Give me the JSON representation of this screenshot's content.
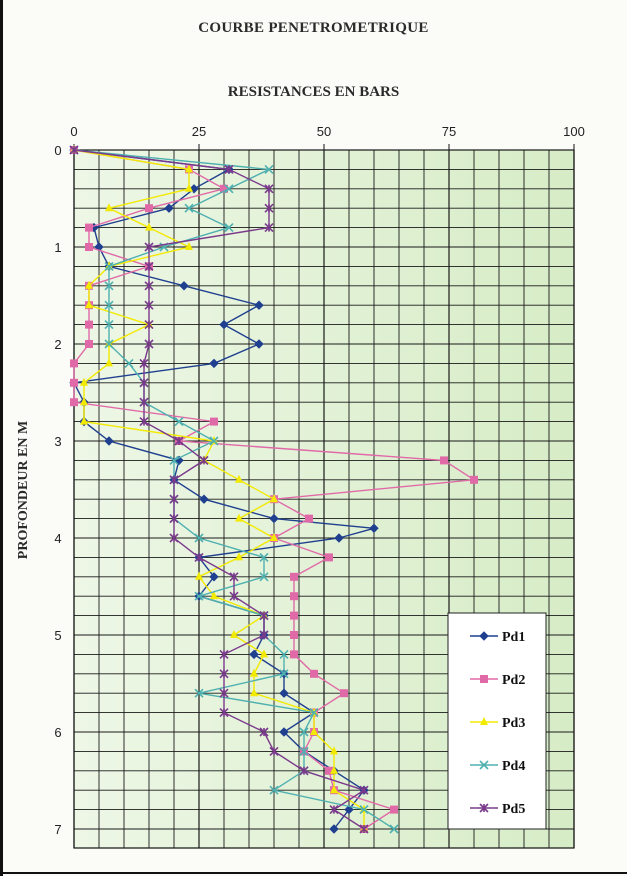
{
  "chart_data": {
    "type": "line",
    "title": "COURBE PENETROMETRIQUE",
    "xlabel": "RESISTANCES EN BARS",
    "ylabel": "PROFONDEUR EN M",
    "xlim": [
      0,
      100
    ],
    "ylim": [
      0,
      7.2
    ],
    "y_inverted": true,
    "x_axis_position": "top",
    "x_ticks": [
      0,
      25,
      50,
      75,
      100
    ],
    "y_ticks": [
      0,
      1,
      2,
      3,
      4,
      5,
      6,
      7
    ],
    "grid": true,
    "legend_position": "bottom-right",
    "series": [
      {
        "name": "Pd1",
        "color": "#1f3f8f",
        "marker": "diamond",
        "points": [
          [
            0,
            0
          ],
          [
            31,
            0.2
          ],
          [
            24,
            0.4
          ],
          [
            19,
            0.6
          ],
          [
            4,
            0.8
          ],
          [
            5,
            1.0
          ],
          [
            7,
            1.2
          ],
          [
            22,
            1.4
          ],
          [
            37,
            1.6
          ],
          [
            30,
            1.8
          ],
          [
            37,
            2.0
          ],
          [
            28,
            2.2
          ],
          [
            0,
            2.4
          ],
          [
            2,
            2.6
          ],
          [
            2,
            2.8
          ],
          [
            7,
            3.0
          ],
          [
            21,
            3.2
          ],
          [
            20,
            3.4
          ],
          [
            26,
            3.6
          ],
          [
            40,
            3.8
          ],
          [
            60,
            3.9
          ],
          [
            53,
            4.0
          ],
          [
            25,
            4.2
          ],
          [
            28,
            4.4
          ],
          [
            25,
            4.6
          ],
          [
            38,
            4.8
          ],
          [
            38,
            5.0
          ],
          [
            36,
            5.2
          ],
          [
            42,
            5.4
          ],
          [
            42,
            5.6
          ],
          [
            48,
            5.8
          ],
          [
            42,
            6.0
          ],
          [
            46,
            6.2
          ],
          [
            52,
            6.4
          ],
          [
            58,
            6.6
          ],
          [
            55,
            6.8
          ],
          [
            52,
            7.0
          ]
        ]
      },
      {
        "name": "Pd2",
        "color": "#e06aa8",
        "marker": "square",
        "points": [
          [
            0,
            0
          ],
          [
            23,
            0.2
          ],
          [
            30,
            0.4
          ],
          [
            15,
            0.6
          ],
          [
            3,
            0.8
          ],
          [
            3,
            1.0
          ],
          [
            15,
            1.2
          ],
          [
            3,
            1.4
          ],
          [
            3,
            1.6
          ],
          [
            3,
            1.8
          ],
          [
            3,
            2.0
          ],
          [
            0,
            2.2
          ],
          [
            0,
            2.4
          ],
          [
            0,
            2.6
          ],
          [
            28,
            2.8
          ],
          [
            21,
            3.0
          ],
          [
            74,
            3.2
          ],
          [
            80,
            3.4
          ],
          [
            40,
            3.6
          ],
          [
            47,
            3.8
          ],
          [
            40,
            4.0
          ],
          [
            51,
            4.2
          ],
          [
            44,
            4.4
          ],
          [
            44,
            4.6
          ],
          [
            44,
            4.8
          ],
          [
            44,
            5.0
          ],
          [
            44,
            5.2
          ],
          [
            48,
            5.4
          ],
          [
            54,
            5.6
          ],
          [
            48,
            5.8
          ],
          [
            48,
            6.0
          ],
          [
            46,
            6.2
          ],
          [
            51,
            6.4
          ],
          [
            52,
            6.6
          ],
          [
            64,
            6.8
          ],
          [
            58,
            7.0
          ]
        ]
      },
      {
        "name": "Pd3",
        "color": "#f2ea00",
        "marker": "triangle",
        "points": [
          [
            0,
            0
          ],
          [
            23,
            0.2
          ],
          [
            23,
            0.4
          ],
          [
            7,
            0.6
          ],
          [
            15,
            0.8
          ],
          [
            23,
            1.0
          ],
          [
            7,
            1.2
          ],
          [
            3,
            1.4
          ],
          [
            3,
            1.6
          ],
          [
            15,
            1.8
          ],
          [
            7,
            2.0
          ],
          [
            7,
            2.2
          ],
          [
            2,
            2.4
          ],
          [
            2,
            2.6
          ],
          [
            2,
            2.8
          ],
          [
            28,
            3.0
          ],
          [
            26,
            3.2
          ],
          [
            33,
            3.4
          ],
          [
            40,
            3.6
          ],
          [
            33,
            3.8
          ],
          [
            40,
            4.0
          ],
          [
            33,
            4.2
          ],
          [
            25,
            4.4
          ],
          [
            28,
            4.6
          ],
          [
            38,
            4.8
          ],
          [
            32,
            5.0
          ],
          [
            38,
            5.2
          ],
          [
            36,
            5.4
          ],
          [
            36,
            5.6
          ],
          [
            48,
            5.8
          ],
          [
            48,
            6.0
          ],
          [
            52,
            6.2
          ],
          [
            52,
            6.4
          ],
          [
            52,
            6.6
          ],
          [
            58,
            6.8
          ],
          [
            58,
            7.0
          ]
        ]
      },
      {
        "name": "Pd4",
        "color": "#4fb0b0",
        "marker": "x",
        "points": [
          [
            0,
            0
          ],
          [
            39,
            0.2
          ],
          [
            31,
            0.4
          ],
          [
            23,
            0.6
          ],
          [
            31,
            0.8
          ],
          [
            18,
            1.0
          ],
          [
            7,
            1.2
          ],
          [
            7,
            1.4
          ],
          [
            7,
            1.6
          ],
          [
            7,
            1.8
          ],
          [
            7,
            2.0
          ],
          [
            11,
            2.2
          ],
          [
            14,
            2.4
          ],
          [
            14,
            2.6
          ],
          [
            21,
            2.8
          ],
          [
            28,
            3.0
          ],
          [
            20,
            3.2
          ],
          [
            20,
            3.4
          ],
          [
            20,
            3.6
          ],
          [
            20,
            3.8
          ],
          [
            25,
            4.0
          ],
          [
            38,
            4.2
          ],
          [
            38,
            4.4
          ],
          [
            25,
            4.6
          ],
          [
            38,
            4.8
          ],
          [
            38,
            5.0
          ],
          [
            42,
            5.2
          ],
          [
            42,
            5.4
          ],
          [
            25,
            5.6
          ],
          [
            48,
            5.8
          ],
          [
            46,
            6.0
          ],
          [
            46,
            6.2
          ],
          [
            46,
            6.4
          ],
          [
            40,
            6.6
          ],
          [
            58,
            6.8
          ],
          [
            64,
            7.0
          ]
        ]
      },
      {
        "name": "Pd5",
        "color": "#7a3a8c",
        "marker": "star",
        "points": [
          [
            0,
            0
          ],
          [
            31,
            0.2
          ],
          [
            39,
            0.4
          ],
          [
            39,
            0.6
          ],
          [
            39,
            0.8
          ],
          [
            15,
            1.0
          ],
          [
            15,
            1.2
          ],
          [
            15,
            1.4
          ],
          [
            15,
            1.6
          ],
          [
            15,
            1.8
          ],
          [
            15,
            2.0
          ],
          [
            14,
            2.2
          ],
          [
            14,
            2.4
          ],
          [
            14,
            2.6
          ],
          [
            14,
            2.8
          ],
          [
            21,
            3.0
          ],
          [
            26,
            3.2
          ],
          [
            20,
            3.4
          ],
          [
            20,
            3.6
          ],
          [
            20,
            3.8
          ],
          [
            20,
            4.0
          ],
          [
            25,
            4.2
          ],
          [
            32,
            4.4
          ],
          [
            32,
            4.6
          ],
          [
            38,
            4.8
          ],
          [
            38,
            5.0
          ],
          [
            30,
            5.2
          ],
          [
            30,
            5.4
          ],
          [
            30,
            5.6
          ],
          [
            30,
            5.8
          ],
          [
            38,
            6.0
          ],
          [
            40,
            6.2
          ],
          [
            46,
            6.4
          ],
          [
            58,
            6.6
          ],
          [
            52,
            6.8
          ],
          [
            58,
            7.0
          ]
        ]
      }
    ]
  }
}
